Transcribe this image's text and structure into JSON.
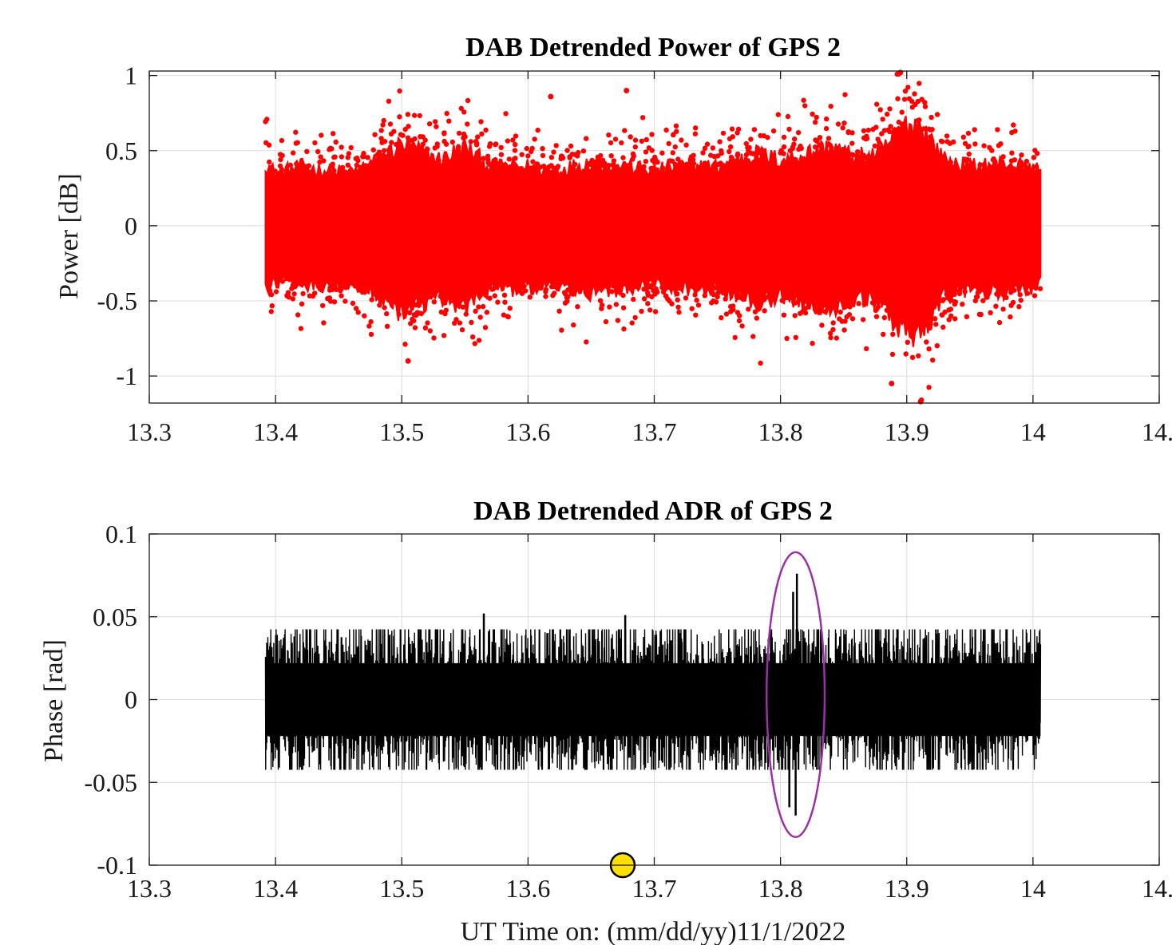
{
  "chart_data": [
    {
      "type": "scatter",
      "title": "DAB Detrended Power of GPS 2",
      "xlabel": "",
      "ylabel": "Power [dB]",
      "xlim": [
        13.3,
        14.1
      ],
      "ylim": [
        -1.18,
        1.03
      ],
      "xticks": [
        13.3,
        13.4,
        13.5,
        13.6,
        13.7,
        13.8,
        13.9,
        14.0,
        14.1
      ],
      "xtick_labels": [
        "13.3",
        "13.4",
        "13.5",
        "13.6",
        "13.7",
        "13.8",
        "13.9",
        "14",
        "14."
      ],
      "yticks": [
        -1,
        -0.5,
        0,
        0.5,
        1
      ],
      "ytick_labels": [
        "-1",
        "-0.5",
        "0",
        "0.5",
        "1"
      ],
      "grid": true,
      "color": "#ff0000",
      "data_range_x": [
        13.392,
        14.006
      ],
      "amplitude_envelope": [
        [
          13.392,
          0.48
        ],
        [
          13.4,
          0.4
        ],
        [
          13.42,
          0.45
        ],
        [
          13.44,
          0.42
        ],
        [
          13.46,
          0.4
        ],
        [
          13.48,
          0.5
        ],
        [
          13.5,
          0.62
        ],
        [
          13.52,
          0.55
        ],
        [
          13.53,
          0.5
        ],
        [
          13.55,
          0.6
        ],
        [
          13.57,
          0.45
        ],
        [
          13.6,
          0.45
        ],
        [
          13.62,
          0.42
        ],
        [
          13.65,
          0.48
        ],
        [
          13.68,
          0.45
        ],
        [
          13.7,
          0.42
        ],
        [
          13.72,
          0.45
        ],
        [
          13.75,
          0.45
        ],
        [
          13.78,
          0.55
        ],
        [
          13.8,
          0.5
        ],
        [
          13.82,
          0.55
        ],
        [
          13.84,
          0.6
        ],
        [
          13.86,
          0.52
        ],
        [
          13.88,
          0.55
        ],
        [
          13.895,
          0.75
        ],
        [
          13.91,
          0.78
        ],
        [
          13.93,
          0.5
        ],
        [
          13.95,
          0.45
        ],
        [
          13.98,
          0.48
        ],
        [
          14.006,
          0.42
        ]
      ],
      "notable_points": [
        {
          "x": 13.895,
          "y": 1.02
        },
        {
          "x": 13.911,
          "y": -1.17
        },
        {
          "x": 13.888,
          "y": -1.05
        },
        {
          "x": 13.678,
          "y": 0.9
        },
        {
          "x": 13.618,
          "y": 0.86
        },
        {
          "x": 13.505,
          "y": -0.9
        }
      ]
    },
    {
      "type": "line",
      "title": "DAB Detrended ADR of GPS 2",
      "xlabel": "UT Time on: (mm/dd/yy)11/1/2022",
      "ylabel": "Phase [rad]",
      "xlim": [
        13.3,
        14.1
      ],
      "ylim": [
        -0.1,
        0.1
      ],
      "xticks": [
        13.3,
        13.4,
        13.5,
        13.6,
        13.7,
        13.8,
        13.9,
        14.0,
        14.1
      ],
      "xtick_labels": [
        "13.3",
        "13.4",
        "13.5",
        "13.6",
        "13.7",
        "13.8",
        "13.9",
        "14",
        "14."
      ],
      "yticks": [
        -0.1,
        -0.05,
        0,
        0.05,
        0.1
      ],
      "ytick_labels": [
        "-0.1",
        "-0.05",
        "0",
        "0.05",
        "0.1"
      ],
      "grid": true,
      "color": "#000000",
      "data_range_x": [
        13.392,
        14.006
      ],
      "typical_amplitude": 0.032,
      "notable_points": [
        {
          "x": 13.813,
          "y": 0.076
        },
        {
          "x": 13.81,
          "y": 0.065
        },
        {
          "x": 13.812,
          "y": -0.07
        },
        {
          "x": 13.807,
          "y": -0.065
        },
        {
          "x": 13.565,
          "y": 0.052
        },
        {
          "x": 13.677,
          "y": 0.051
        }
      ],
      "annotations": [
        {
          "type": "ellipse",
          "color": "#9b30a8",
          "center_x": 13.812,
          "center_y": 0.003,
          "half_width_x": 0.023,
          "half_height_y": 0.086
        },
        {
          "type": "marker",
          "shape": "circle",
          "color": "#ffe000",
          "x": 13.675,
          "y": -0.1
        }
      ]
    }
  ]
}
